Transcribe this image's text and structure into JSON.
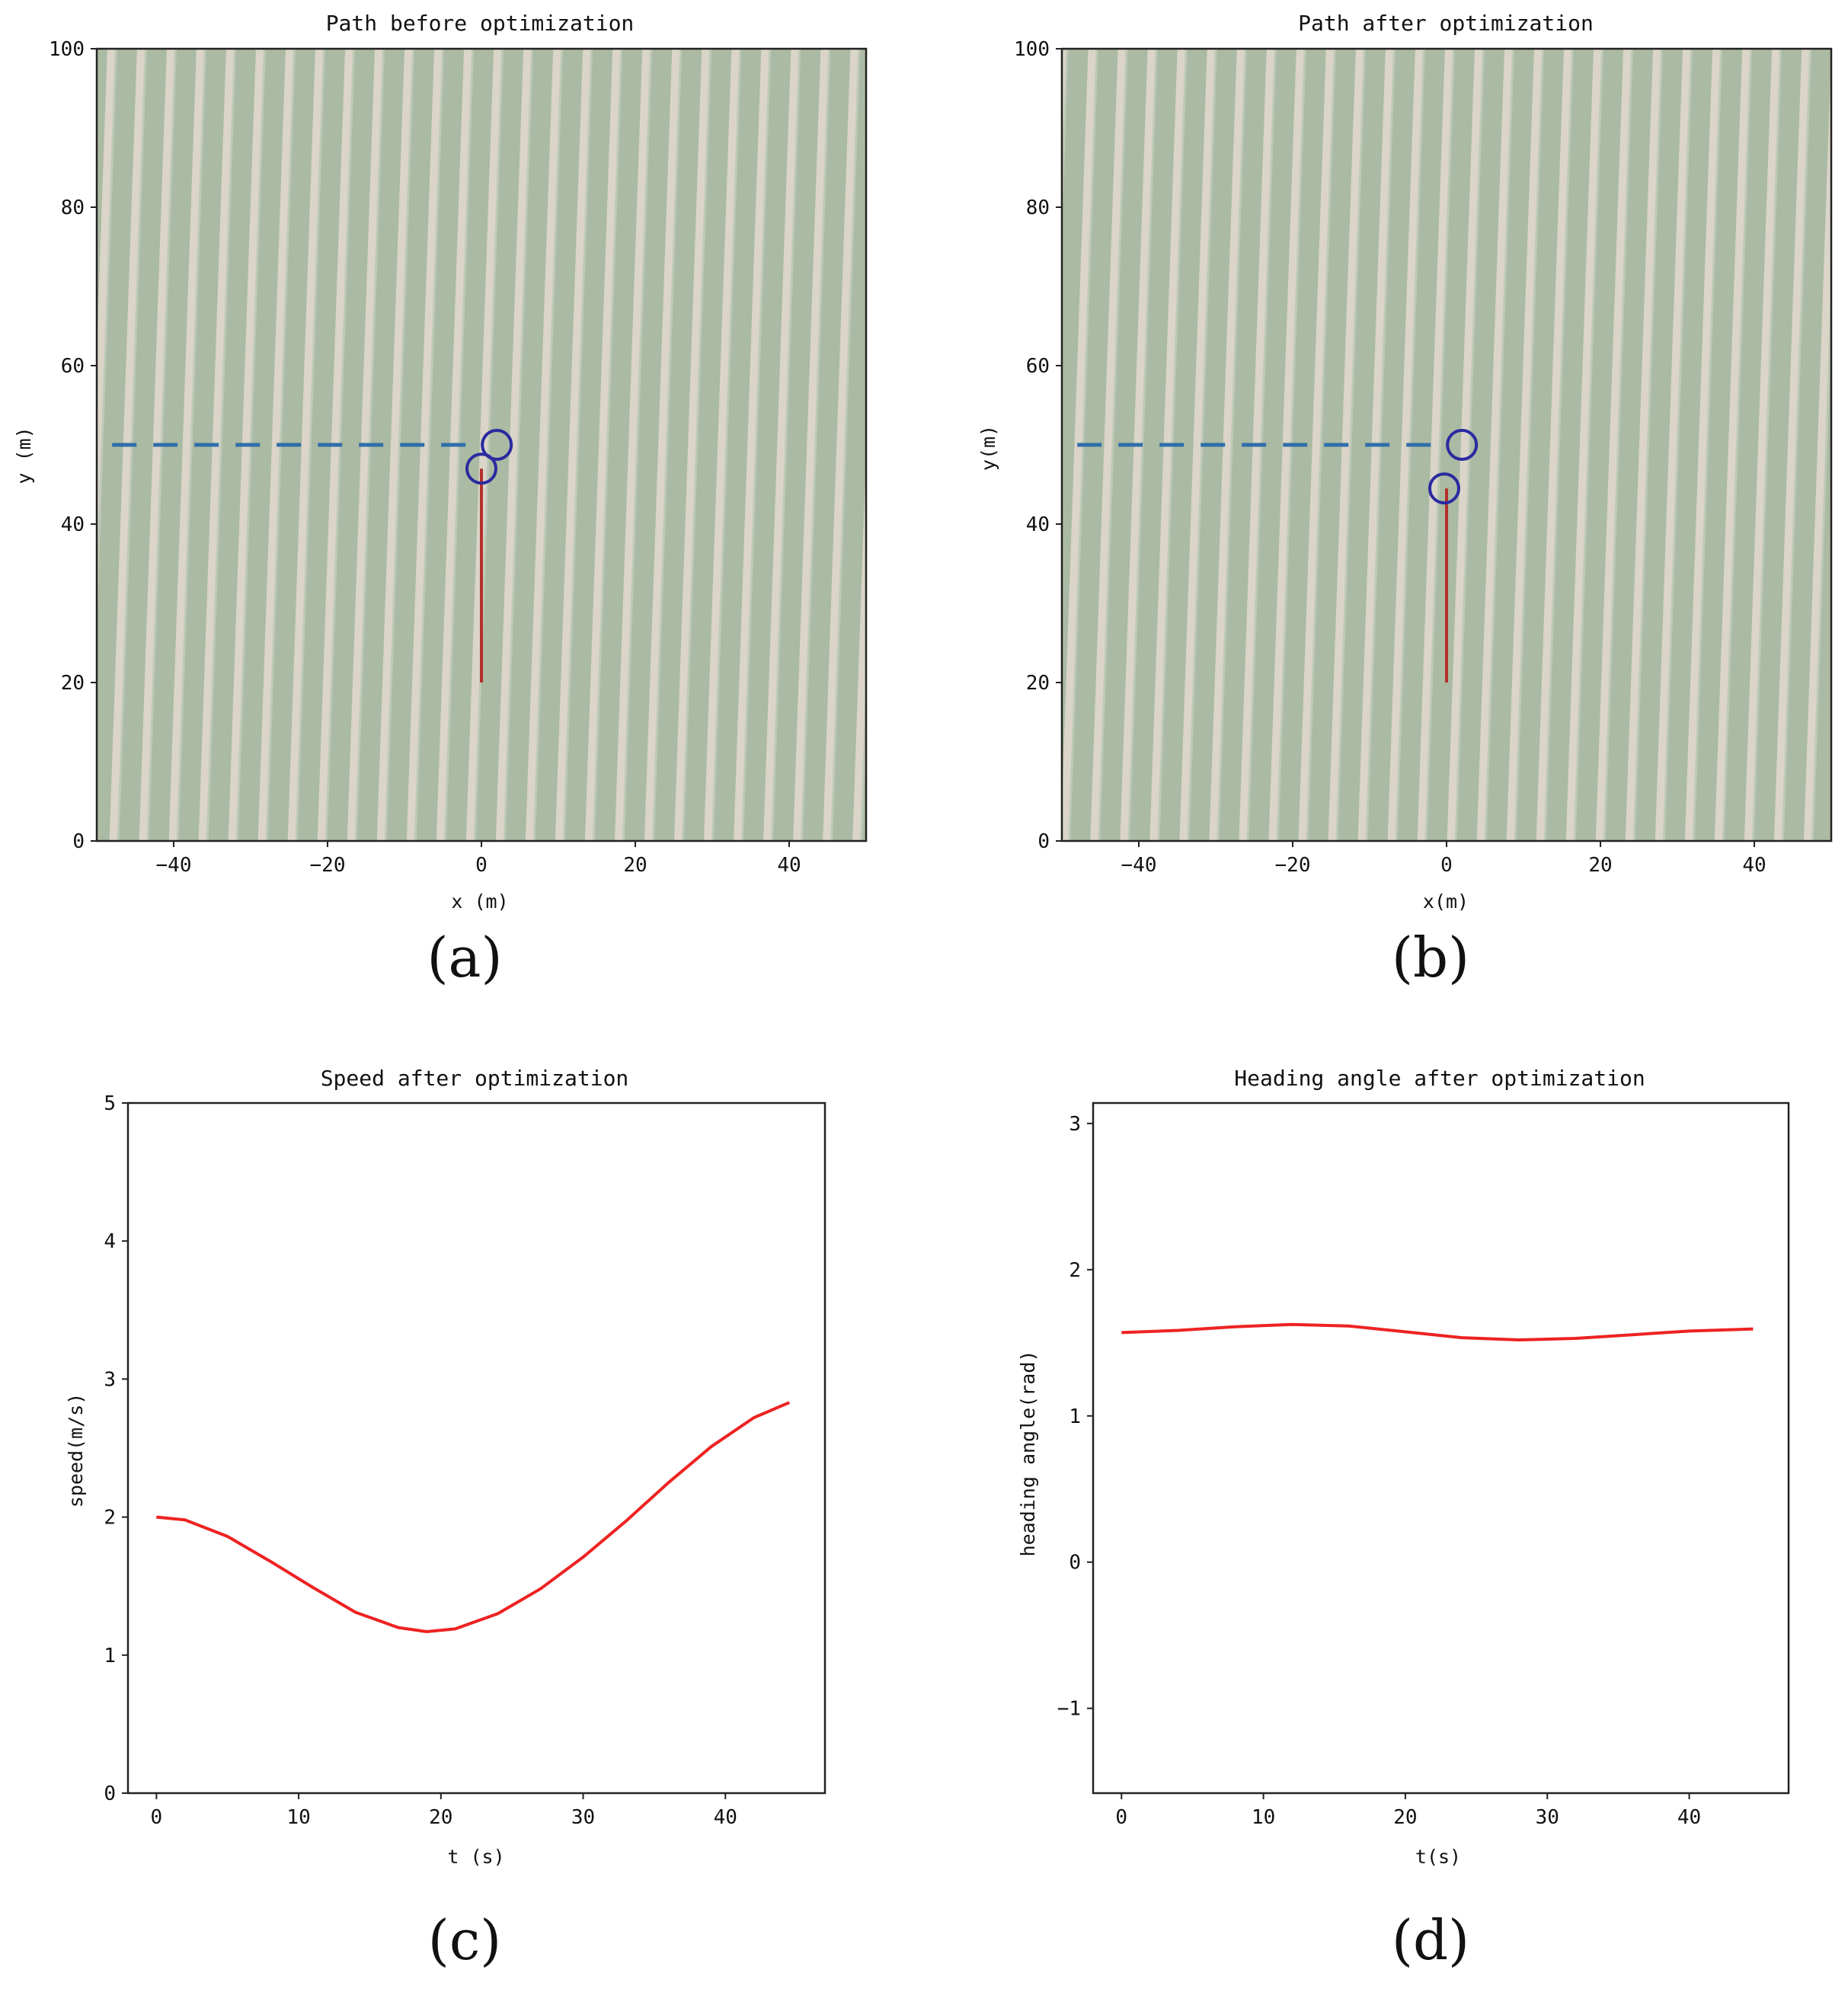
{
  "colors": {
    "field_base": "#b5c3ae",
    "crop_row": "#94a98f",
    "soil": "#d4cfc1",
    "planned_path": "#2f6fa8",
    "vehicle_path": "#b3312b",
    "marker": "#2a2aa0",
    "curve": "#ee2222"
  },
  "chart_data": [
    {
      "id": "a",
      "type": "line",
      "panel_label": "(a)",
      "title": "Path before optimization",
      "xlabel": "x (m)",
      "ylabel": "y (m)",
      "xlim": [
        -50,
        50
      ],
      "ylim": [
        0,
        100
      ],
      "xticks": [
        -40,
        -20,
        0,
        20,
        40
      ],
      "yticks": [
        0,
        20,
        40,
        60,
        80,
        100
      ],
      "background": "aerial image of crop rows",
      "series": [
        {
          "name": "planned path",
          "style": "dashed",
          "x": [
            -48,
            0
          ],
          "y": [
            50,
            50
          ]
        },
        {
          "name": "vehicle path",
          "style": "solid",
          "x": [
            0,
            0
          ],
          "y": [
            20,
            47
          ]
        }
      ],
      "markers": [
        {
          "name": "vehicle",
          "shape": "circle",
          "x": 0,
          "y": 47
        },
        {
          "name": "target",
          "shape": "circle",
          "x": 2,
          "y": 50
        }
      ]
    },
    {
      "id": "b",
      "type": "line",
      "panel_label": "(b)",
      "title": "Path after optimization",
      "xlabel": "x(m)",
      "ylabel": "y(m)",
      "xlim": [
        -50,
        50
      ],
      "ylim": [
        0,
        100
      ],
      "xticks": [
        -40,
        -20,
        0,
        20,
        40
      ],
      "yticks": [
        0,
        20,
        40,
        60,
        80,
        100
      ],
      "background": "aerial image of crop rows",
      "series": [
        {
          "name": "planned path",
          "style": "dashed",
          "x": [
            -48,
            0
          ],
          "y": [
            50,
            50
          ]
        },
        {
          "name": "vehicle path",
          "style": "solid",
          "x": [
            0,
            0
          ],
          "y": [
            20,
            44.5
          ]
        }
      ],
      "markers": [
        {
          "name": "vehicle",
          "shape": "circle",
          "x": -0.3,
          "y": 44.5
        },
        {
          "name": "target",
          "shape": "circle",
          "x": 2,
          "y": 50
        }
      ]
    },
    {
      "id": "c",
      "type": "line",
      "panel_label": "(c)",
      "title": "Speed after optimization",
      "xlabel": "t (s)",
      "ylabel": "speed(m/s)",
      "xlim": [
        -2,
        47
      ],
      "ylim": [
        0,
        5
      ],
      "xticks": [
        0,
        10,
        20,
        30,
        40
      ],
      "yticks": [
        0,
        1,
        2,
        3,
        4,
        5
      ],
      "series": [
        {
          "name": "speed",
          "x": [
            0,
            2,
            5,
            8,
            11,
            14,
            17,
            19,
            21,
            24,
            27,
            30,
            33,
            36,
            39,
            42,
            44.5
          ],
          "y": [
            2.0,
            1.98,
            1.86,
            1.68,
            1.49,
            1.31,
            1.2,
            1.17,
            1.19,
            1.3,
            1.48,
            1.71,
            1.97,
            2.25,
            2.51,
            2.72,
            2.83
          ]
        }
      ]
    },
    {
      "id": "d",
      "type": "line",
      "panel_label": "(d)",
      "title": "Heading angle after optimization",
      "xlabel": "t(s)",
      "ylabel": "heading angle(rad)",
      "xlim": [
        -2,
        47
      ],
      "ylim": [
        -1.58,
        3.14
      ],
      "xticks": [
        0,
        10,
        20,
        30,
        40
      ],
      "yticks": [
        -1,
        0,
        1,
        2,
        3
      ],
      "series": [
        {
          "name": "heading angle",
          "x": [
            0,
            4,
            8,
            12,
            16,
            20,
            24,
            28,
            32,
            36,
            40,
            44.5
          ],
          "y": [
            1.57,
            1.585,
            1.61,
            1.625,
            1.615,
            1.575,
            1.535,
            1.52,
            1.53,
            1.555,
            1.58,
            1.595
          ]
        }
      ]
    }
  ]
}
